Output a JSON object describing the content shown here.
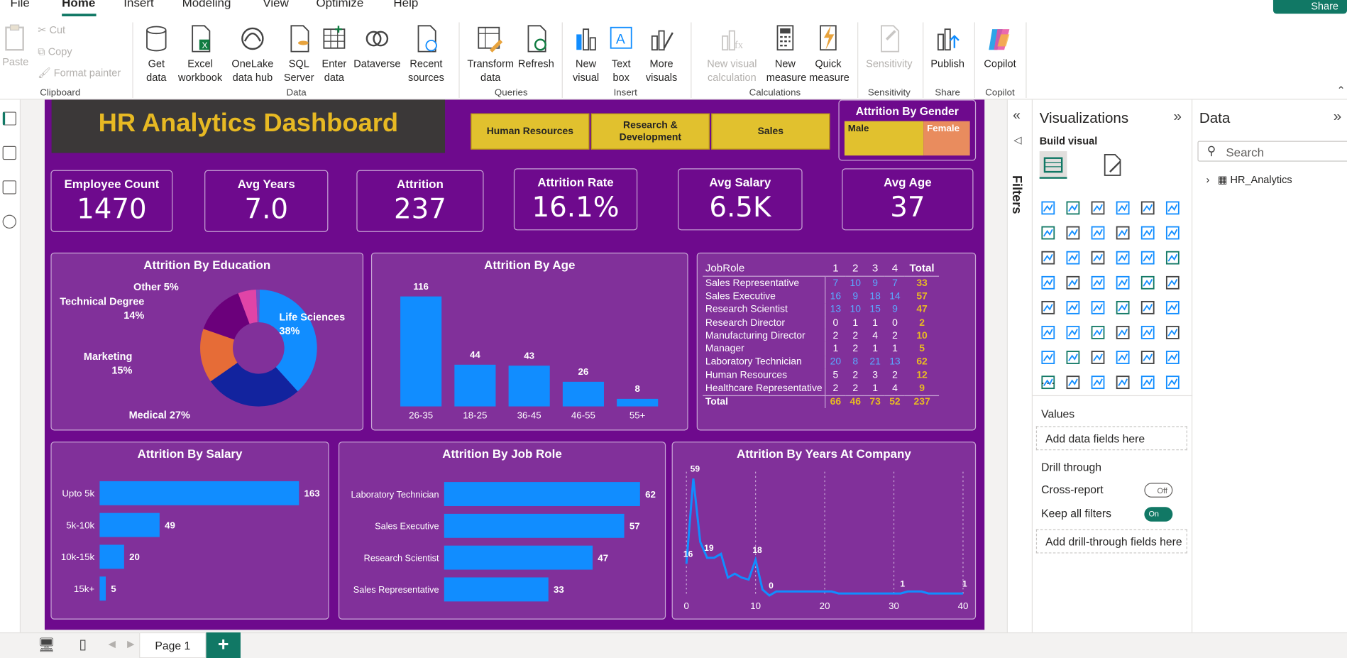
{
  "menu": {
    "file": "File",
    "home": "Home",
    "insert": "Insert",
    "modeling": "Modeling",
    "view": "View",
    "optimize": "Optimize",
    "help": "Help",
    "share": "Share"
  },
  "ribbon": {
    "paste": "Paste",
    "cut": "Cut",
    "copy": "Copy",
    "format_painter": "Format painter",
    "clipboard": "Clipboard",
    "get_data": "Get data",
    "excel": "Excel workbook",
    "onelake": "OneLake data hub",
    "sql": "SQL Server",
    "enter_data": "Enter data",
    "dataverse": "Dataverse",
    "recent": "Recent sources",
    "data_group": "Data",
    "transform": "Transform data",
    "refresh": "Refresh",
    "queries": "Queries",
    "new_visual": "New visual",
    "text_box": "Text box",
    "more_visuals": "More visuals",
    "insert_group": "Insert",
    "new_visual_calc": "New visual calculation",
    "new_measure": "New measure",
    "quick_measure": "Quick measure",
    "calculations": "Calculations",
    "sensitivity": "Sensitivity",
    "sensitivity_group": "Sensitivity",
    "publish": "Publish",
    "share_group": "Share",
    "copilot": "Copilot",
    "copilot_group": "Copilot"
  },
  "report": {
    "title": "HR Analytics Dashboard",
    "slicers": [
      "Human Resources",
      "Research & Development",
      "Sales"
    ],
    "gender_title": "Attrition By Gender",
    "gender": [
      "Male",
      "Female"
    ],
    "cards": [
      {
        "label": "Employee Count",
        "value": "1470"
      },
      {
        "label": "Avg Years",
        "value": "7.0"
      },
      {
        "label": "Attrition",
        "value": "237"
      },
      {
        "label": "Attrition Rate",
        "value": "16.1%"
      },
      {
        "label": "Avg Salary",
        "value": "6.5K"
      },
      {
        "label": "Avg Age",
        "value": "37"
      }
    ]
  },
  "chart_data": [
    {
      "type": "pie",
      "title": "Attrition By Education",
      "categories": [
        "Life Sciences",
        "Medical",
        "Marketing",
        "Technical Degree",
        "Other",
        ""
      ],
      "values": [
        38,
        27,
        15,
        14,
        5,
        1
      ],
      "labels": [
        "Life Sciences\n38%",
        "Medical 27%",
        "Marketing\n15%",
        "Technical Degree\n14%",
        "Other 5%"
      ],
      "colors": [
        "#118dff",
        "#12239e",
        "#e66c37",
        "#6b007b",
        "#e044a7",
        "#744ec2"
      ]
    },
    {
      "type": "bar",
      "title": "Attrition By Age",
      "categories": [
        "26-35",
        "18-25",
        "36-45",
        "46-55",
        "55+"
      ],
      "values": [
        116,
        44,
        43,
        26,
        8
      ],
      "color": "#118dff"
    },
    {
      "type": "table",
      "columns": [
        "JobRole",
        "1",
        "2",
        "3",
        "4",
        "Total"
      ],
      "rows": [
        [
          "Sales Representative",
          "7",
          "10",
          "9",
          "7",
          "33"
        ],
        [
          "Sales Executive",
          "16",
          "9",
          "18",
          "14",
          "57"
        ],
        [
          "Research Scientist",
          "13",
          "10",
          "15",
          "9",
          "47"
        ],
        [
          "Research Director",
          "0",
          "1",
          "1",
          "0",
          "2"
        ],
        [
          "Manufacturing Director",
          "2",
          "2",
          "4",
          "2",
          "10"
        ],
        [
          "Manager",
          "1",
          "2",
          "1",
          "1",
          "5"
        ],
        [
          "Laboratory Technician",
          "20",
          "8",
          "21",
          "13",
          "62"
        ],
        [
          "Human Resources",
          "5",
          "2",
          "3",
          "2",
          "12"
        ],
        [
          "Healthcare Representative",
          "2",
          "2",
          "1",
          "4",
          "9"
        ],
        [
          "Total",
          "66",
          "46",
          "73",
          "52",
          "237"
        ]
      ]
    },
    {
      "type": "bar",
      "orientation": "horizontal",
      "title": "Attrition By Salary",
      "categories": [
        "Upto 5k",
        "5k-10k",
        "10k-15k",
        "15k+"
      ],
      "values": [
        163,
        49,
        20,
        5
      ],
      "color": "#118dff"
    },
    {
      "type": "bar",
      "orientation": "horizontal",
      "title": "Attrition By Job Role",
      "categories": [
        "Laboratory Technician",
        "Sales Executive",
        "Research Scientist",
        "Sales Representative"
      ],
      "values": [
        62,
        57,
        47,
        33
      ],
      "color": "#118dff"
    },
    {
      "type": "line",
      "title": "Attrition By Years At Company",
      "x": [
        0,
        1,
        2,
        3,
        4,
        5,
        6,
        7,
        8,
        9,
        10,
        11,
        12,
        13,
        14,
        15,
        16,
        17,
        18,
        19,
        20,
        21,
        22,
        23,
        24,
        25,
        26,
        27,
        28,
        29,
        30,
        31,
        32,
        33,
        34,
        35,
        36,
        37,
        38,
        39,
        40
      ],
      "y": [
        16,
        59,
        27,
        19,
        19,
        21,
        9,
        11,
        9,
        8,
        18,
        3,
        0,
        2,
        2,
        2,
        2,
        2,
        2,
        2,
        2,
        2,
        1,
        1,
        1,
        1,
        1,
        1,
        1,
        1,
        1,
        1,
        2,
        2,
        2,
        1,
        1,
        1,
        1,
        1,
        1
      ],
      "point_labels": [
        {
          "x": 0,
          "y": 16,
          "label": "16"
        },
        {
          "x": 1,
          "y": 59,
          "label": "59"
        },
        {
          "x": 3,
          "y": 19,
          "label": "19"
        },
        {
          "x": 10,
          "y": 18,
          "label": "18"
        },
        {
          "x": 12,
          "y": 0,
          "label": "0"
        },
        {
          "x": 31,
          "y": 1,
          "label": "1"
        },
        {
          "x": 40,
          "y": 1,
          "label": "1"
        }
      ],
      "xticks": [
        "0",
        "10",
        "20",
        "30",
        "40"
      ],
      "color": "#118dff"
    }
  ],
  "panes": {
    "filters": "Filters",
    "visualizations": "Visualizations",
    "build_visual": "Build visual",
    "values": "Values",
    "add_data": "Add data fields here",
    "drill": "Drill through",
    "cross_report": "Cross-report",
    "cross_state": "Off",
    "keep_filters": "Keep all filters",
    "keep_state": "On",
    "add_drill": "Add drill-through fields here",
    "data": "Data",
    "search_placeholder": "Search",
    "table": "HR_Analytics",
    "more": "..."
  },
  "footer": {
    "page": "Page 1",
    "plus": "+"
  }
}
